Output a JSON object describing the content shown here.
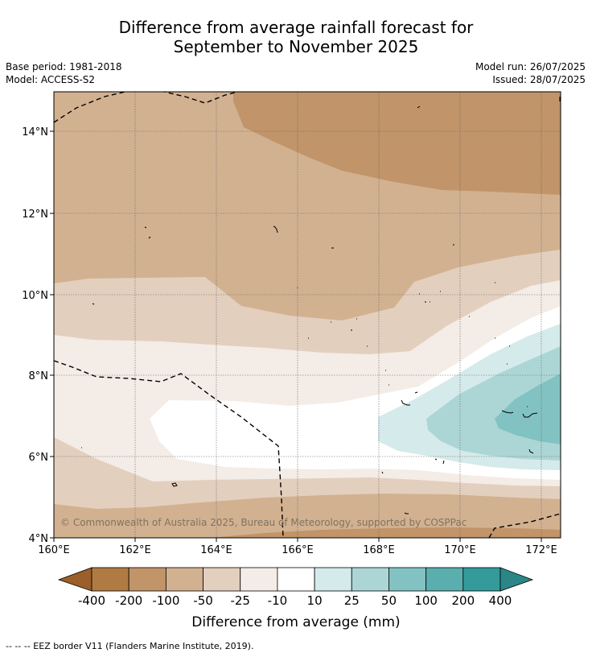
{
  "title_line1": "Difference from average rainfall forecast for",
  "title_line2": "September to November 2025",
  "meta_left": {
    "base_period": "Base period: 1981-2018",
    "model": "Model: ACCESS-S2"
  },
  "meta_right": {
    "model_run": "Model run: 26/07/2025",
    "issued": "Issued: 28/07/2025"
  },
  "map": {
    "lon_labels": [
      "160°E",
      "162°E",
      "164°E",
      "166°E",
      "168°E",
      "170°E",
      "172°E"
    ],
    "lat_labels": [
      "4°N",
      "6°N",
      "8°N",
      "10°N",
      "12°N",
      "14°N"
    ],
    "copyright": "© Commonwealth of Australia 2025, Bureau of Meteorology, supported by COSPPac"
  },
  "colorbar": {
    "labels": [
      "-400",
      "-200",
      "-100",
      "-50",
      "-25",
      "-10",
      "10",
      "25",
      "50",
      "100",
      "200",
      "400"
    ],
    "colors": [
      "#9b5f2c",
      "#b07a43",
      "#c19469",
      "#d2b191",
      "#e3cfbe",
      "#f4ece6",
      "#ffffff",
      "#d5eaea",
      "#acd6d6",
      "#83c2c2",
      "#5aaeae",
      "#349a9a",
      "#2b8787"
    ],
    "label": "Difference from average (mm)"
  },
  "footnote": "--  --  -- EEZ border V11 (Flanders Marine Institute, 2019)."
}
